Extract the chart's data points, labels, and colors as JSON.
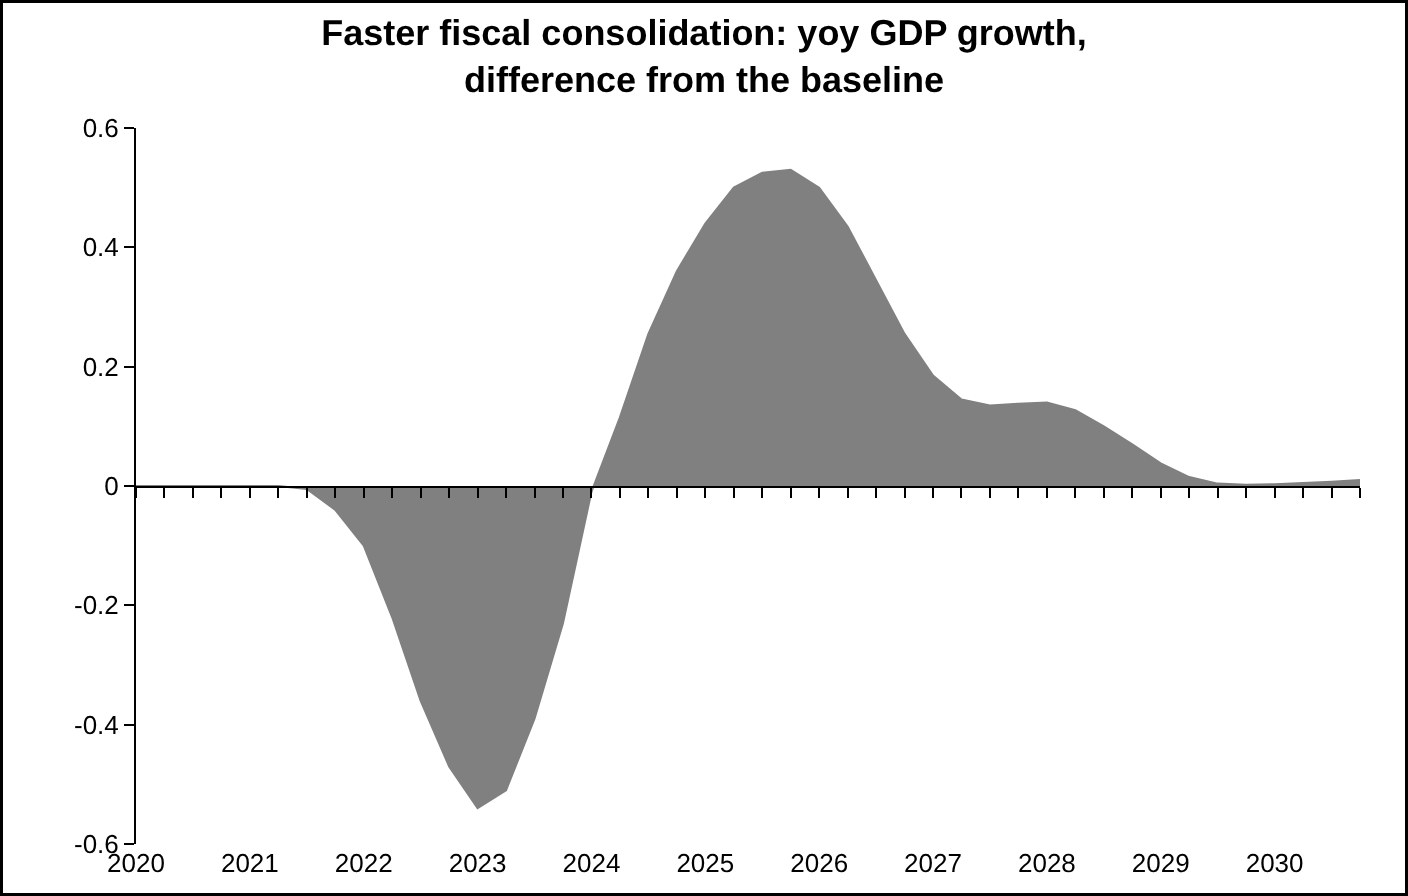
{
  "chart_data": {
    "type": "area",
    "title": "Faster fiscal consolidation: yoy GDP growth, difference from the baseline",
    "x": [
      2020,
      2020.25,
      2020.5,
      2020.75,
      2021,
      2021.25,
      2021.5,
      2021.75,
      2022,
      2022.25,
      2022.5,
      2022.75,
      2023,
      2023.25,
      2023.5,
      2023.75,
      2024,
      2024.25,
      2024.5,
      2024.75,
      2025,
      2025.25,
      2025.5,
      2025.75,
      2026,
      2026.25,
      2026.5,
      2026.75,
      2027,
      2027.25,
      2027.5,
      2027.75,
      2028,
      2028.25,
      2028.5,
      2028.75,
      2029,
      2029.25,
      2029.5,
      2029.75,
      2030,
      2030.25,
      2030.5,
      2030.75
    ],
    "series": [
      {
        "color": "#808080",
        "values": [
          0,
          0,
          0,
          0,
          0,
          0,
          -0.005,
          -0.04,
          -0.1,
          -0.22,
          -0.36,
          -0.47,
          -0.54,
          -0.51,
          -0.39,
          -0.23,
          -0.01,
          0.115,
          0.255,
          0.36,
          0.44,
          0.5,
          0.525,
          0.53,
          0.5,
          0.435,
          0.345,
          0.255,
          0.185,
          0.145,
          0.135,
          0.138,
          0.14,
          0.127,
          0.1,
          0.07,
          0.038,
          0.015,
          0.004,
          0.002,
          0.003,
          0.005,
          0.007,
          0.01
        ]
      }
    ],
    "xlim": [
      2020,
      2030.75
    ],
    "xticks": [
      2020,
      {
        "value": 2020.25,
        "label": null
      },
      {
        "value": 2020.5,
        "label": null
      },
      {
        "value": 2020.75,
        "label": null
      },
      2021,
      {
        "value": 2021.25,
        "label": null
      },
      {
        "value": 2021.5,
        "label": null
      },
      {
        "value": 2021.75,
        "label": null
      },
      2022,
      {
        "value": 2022.25,
        "label": null
      },
      {
        "value": 2022.5,
        "label": null
      },
      {
        "value": 2022.75,
        "label": null
      },
      2023,
      {
        "value": 2023.25,
        "label": null
      },
      {
        "value": 2023.5,
        "label": null
      },
      {
        "value": 2023.75,
        "label": null
      },
      2024,
      {
        "value": 2024.25,
        "label": null
      },
      {
        "value": 2024.5,
        "label": null
      },
      {
        "value": 2024.75,
        "label": null
      },
      2025,
      {
        "value": 2025.25,
        "label": null
      },
      {
        "value": 2025.5,
        "label": null
      },
      {
        "value": 2025.75,
        "label": null
      },
      2026,
      {
        "value": 2026.25,
        "label": null
      },
      {
        "value": 2026.5,
        "label": null
      },
      {
        "value": 2026.75,
        "label": null
      },
      2027,
      {
        "value": 2027.25,
        "label": null
      },
      {
        "value": 2027.5,
        "label": null
      },
      {
        "value": 2027.75,
        "label": null
      },
      2028,
      {
        "value": 2028.25,
        "label": null
      },
      {
        "value": 2028.5,
        "label": null
      },
      {
        "value": 2028.75,
        "label": null
      },
      2029,
      {
        "value": 2029.25,
        "label": null
      },
      {
        "value": 2029.5,
        "label": null
      },
      {
        "value": 2029.75,
        "label": null
      },
      2030,
      {
        "value": 2030.25,
        "label": null
      },
      {
        "value": 2030.5,
        "label": null
      },
      {
        "value": 2030.75,
        "label": null
      }
    ],
    "ylim": [
      -0.6,
      0.6
    ],
    "yticks": [
      {
        "value": -0.6,
        "label": "-0.6"
      },
      {
        "value": -0.4,
        "label": "-0.4"
      },
      {
        "value": -0.2,
        "label": "-0.2"
      },
      0,
      0.2,
      0.4,
      0.6
    ]
  }
}
